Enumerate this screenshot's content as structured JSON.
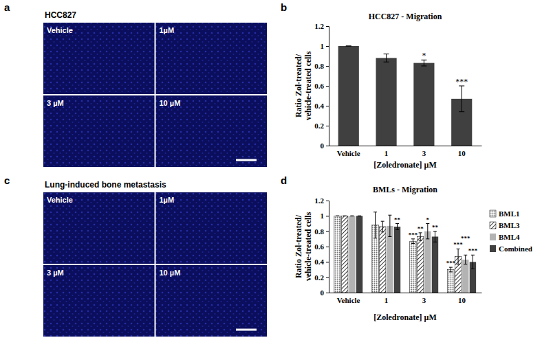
{
  "images": [
    {
      "panel": "a",
      "title": "HCC827",
      "labels": [
        "Vehicle",
        "1µM",
        "3 µM",
        "10 µM"
      ]
    },
    {
      "panel": "c",
      "title": "Lung-induced bone metastasis",
      "labels": [
        "Vehicle",
        "1µM",
        "3 µM",
        "10 µM"
      ]
    }
  ],
  "chart_data": [
    {
      "type": "bar",
      "panel_label": "b",
      "title": "HCC827 - Migration",
      "xlabel": "[Zoledronate] µM",
      "ylabel": [
        "Ratio Zol-treated/",
        "vehicle-treated cells"
      ],
      "categories": [
        "Vehicle",
        "1",
        "3",
        "10"
      ],
      "values": [
        1.0,
        0.88,
        0.83,
        0.47
      ],
      "errors": [
        0,
        0.04,
        0.03,
        0.13
      ],
      "significance": [
        null,
        null,
        "*",
        "***"
      ],
      "color": "#404040",
      "ylim": [
        0,
        1.2
      ],
      "yticks": [
        0,
        0.2,
        0.4,
        0.6,
        0.8,
        1,
        1.2
      ]
    },
    {
      "type": "bar",
      "panel_label": "d",
      "title": "BMLs - Migration",
      "xlabel": "[Zoledronate] µM",
      "ylabel": [
        "Ratio Zol-treated/",
        "vehicle-treated cells"
      ],
      "categories": [
        "Vehicle",
        "1",
        "3",
        "10"
      ],
      "series": [
        {
          "name": "BML1",
          "color": "#707070",
          "marker": "dotted",
          "values": [
            1.0,
            0.88,
            0.67,
            0.3
          ],
          "errors": [
            0,
            0.17,
            0.03,
            0.03
          ],
          "significance": [
            null,
            null,
            "***",
            "***"
          ]
        },
        {
          "name": "BML3",
          "color": "#000000",
          "marker": "hatched",
          "values": [
            1.0,
            0.86,
            0.73,
            0.47
          ],
          "errors": [
            0,
            0.07,
            0.05,
            0.1
          ],
          "significance": [
            null,
            null,
            "**",
            "***"
          ]
        },
        {
          "name": "BML4",
          "color": "#b3b3b3",
          "marker": "solid",
          "values": [
            1.0,
            0.87,
            0.8,
            0.43
          ],
          "errors": [
            0,
            0.14,
            0.1,
            0.06
          ],
          "significance": [
            null,
            null,
            "*",
            "***"
          ]
        },
        {
          "name": "Combined",
          "color": "#404040",
          "marker": "solid",
          "values": [
            1.0,
            0.86,
            0.73,
            0.4
          ],
          "errors": [
            0,
            0.04,
            0.07,
            0.09
          ],
          "significance": [
            null,
            "**",
            "**",
            "***"
          ]
        }
      ],
      "legend": "right",
      "ylim": [
        0,
        1.2
      ],
      "yticks": [
        0,
        0.2,
        0.4,
        0.6,
        0.8,
        1,
        1.2
      ]
    }
  ]
}
